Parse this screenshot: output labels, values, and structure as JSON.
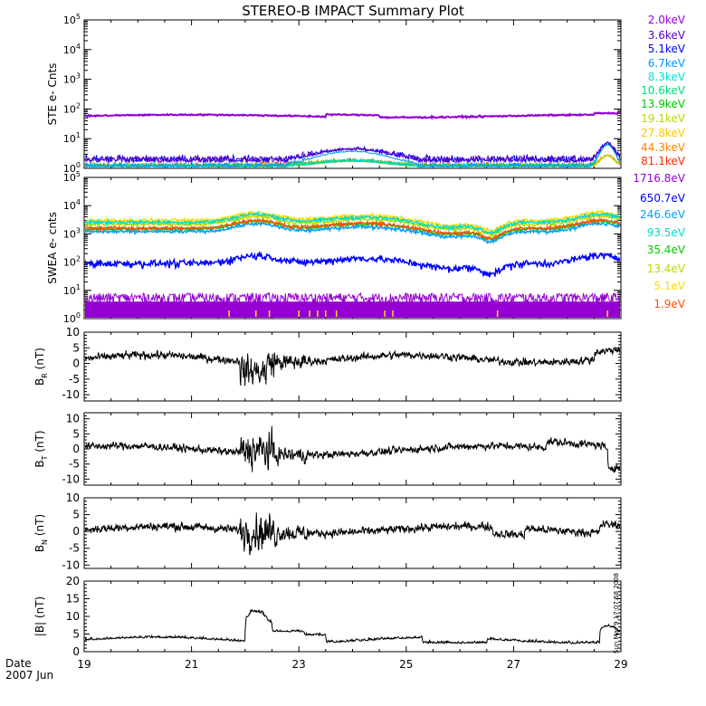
{
  "title": "STEREO-B IMPACT Summary Plot",
  "date_label": "Date",
  "date_value": "2007 Jun",
  "timestamp": "Sun Mar  9 17:07:58 2008",
  "x_ticks": [
    "19",
    "21",
    "23",
    "25",
    "27",
    "29"
  ],
  "chart_data": [
    {
      "type": "line",
      "panel": "ste",
      "ylabel": "STE e- Cnts",
      "ytick_labels": [
        {
          "b": "10",
          "e": "0"
        },
        {
          "b": "10",
          "e": "1"
        },
        {
          "b": "10",
          "e": "2"
        },
        {
          "b": "10",
          "e": "3"
        },
        {
          "b": "10",
          "e": "4"
        },
        {
          "b": "10",
          "e": "5"
        }
      ],
      "yscale": "log",
      "ylim": [
        1,
        100000
      ],
      "xlim": [
        19,
        29
      ],
      "legend_position": "right",
      "series": [
        {
          "name": "2.0keV",
          "color": "#9400d3"
        },
        {
          "name": "3.6keV",
          "color": "#5a00c8"
        },
        {
          "name": "5.1keV",
          "color": "#0000ff"
        },
        {
          "name": "6.7keV",
          "color": "#0096ff"
        },
        {
          "name": "8.3keV",
          "color": "#00dcdc"
        },
        {
          "name": "10.6keV",
          "color": "#00dc78"
        },
        {
          "name": "13.9keV",
          "color": "#00c800"
        },
        {
          "name": "19.1keV",
          "color": "#b4dc00"
        },
        {
          "name": "27.8keV",
          "color": "#ffc800"
        },
        {
          "name": "44.3keV",
          "color": "#ff8200"
        },
        {
          "name": "81.1keV",
          "color": "#ff2800"
        }
      ]
    },
    {
      "type": "line",
      "panel": "swea",
      "ylabel": "SWEA e- cnts",
      "ytick_labels": [
        {
          "b": "10",
          "e": "0"
        },
        {
          "b": "10",
          "e": "1"
        },
        {
          "b": "10",
          "e": "2"
        },
        {
          "b": "10",
          "e": "3"
        },
        {
          "b": "10",
          "e": "4"
        },
        {
          "b": "10",
          "e": "5"
        }
      ],
      "yscale": "log",
      "ylim": [
        1,
        100000
      ],
      "xlim": [
        19,
        29
      ],
      "legend_position": "right",
      "series": [
        {
          "name": "1716.8eV",
          "color": "#9400d3"
        },
        {
          "name": "650.7eV",
          "color": "#0000ff"
        },
        {
          "name": "246.6eV",
          "color": "#00a0ff"
        },
        {
          "name": "93.5eV",
          "color": "#00dcc8"
        },
        {
          "name": "35.4eV",
          "color": "#00c800"
        },
        {
          "name": "13.4eV",
          "color": "#b4dc00"
        },
        {
          "name": "5.1eV",
          "color": "#ffdc00"
        },
        {
          "name": "1.9eV",
          "color": "#ff5000"
        }
      ]
    },
    {
      "type": "line",
      "panel": "br",
      "ylabel_main": "B",
      "ylabel_sub": "R",
      "ylabel_unit": "(nT)",
      "yticks": [
        "10",
        "5",
        "0",
        "-5",
        "-10"
      ],
      "ylim": [
        -12,
        10
      ],
      "xlim": [
        19,
        29
      ],
      "series": [
        {
          "color": "#000000"
        }
      ]
    },
    {
      "type": "line",
      "panel": "bt",
      "ylabel_main": "B",
      "ylabel_sub": "T",
      "ylabel_unit": "(nT)",
      "yticks": [
        "10",
        "5",
        "0",
        "-5",
        "-10"
      ],
      "ylim": [
        -12,
        12
      ],
      "xlim": [
        19,
        29
      ],
      "series": [
        {
          "color": "#000000"
        }
      ]
    },
    {
      "type": "line",
      "panel": "bn",
      "ylabel_main": "B",
      "ylabel_sub": "N",
      "ylabel_unit": "(nT)",
      "yticks": [
        "10",
        "5",
        "0",
        "-5",
        "-10"
      ],
      "ylim": [
        -11,
        10
      ],
      "xlim": [
        19,
        29
      ],
      "series": [
        {
          "color": "#000000"
        }
      ]
    },
    {
      "type": "line",
      "panel": "bmag",
      "ylabel_main": "|B|",
      "ylabel_unit": "(nT)",
      "yticks": [
        "20",
        "15",
        "10",
        "5",
        "0"
      ],
      "ylim": [
        0,
        20
      ],
      "xlim": [
        19,
        29
      ],
      "series": [
        {
          "color": "#000000"
        }
      ]
    }
  ]
}
